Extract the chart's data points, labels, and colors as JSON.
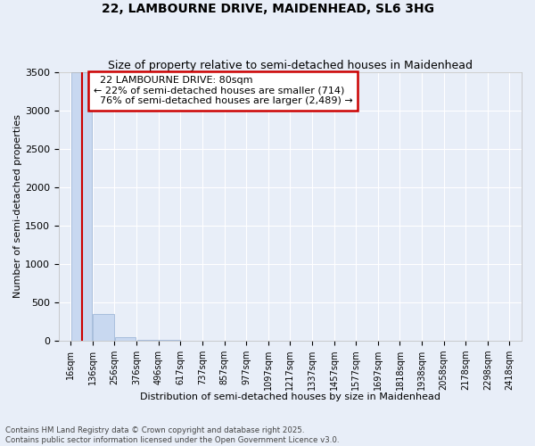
{
  "title": "22, LAMBOURNE DRIVE, MAIDENHEAD, SL6 3HG",
  "subtitle": "Size of property relative to semi-detached houses in Maidenhead",
  "xlabel": "Distribution of semi-detached houses by size in Maidenhead",
  "ylabel": "Number of semi-detached properties",
  "bin_edges": [
    16,
    136,
    256,
    376,
    496,
    617,
    737,
    857,
    977,
    1097,
    1217,
    1337,
    1457,
    1577,
    1697,
    1818,
    1938,
    2058,
    2178,
    2298,
    2418
  ],
  "bar_heights": [
    3500,
    350,
    45,
    10,
    5,
    2,
    1,
    1,
    0,
    0,
    0,
    0,
    0,
    0,
    0,
    0,
    0,
    0,
    0,
    0
  ],
  "bar_color": "#c8d8f0",
  "bar_edge_color": "#a0b8d8",
  "property_size": 80,
  "property_label": "22 LAMBOURNE DRIVE: 80sqm",
  "pct_smaller": 22,
  "n_smaller": 714,
  "pct_larger": 76,
  "n_larger": 2489,
  "vline_color": "#cc0000",
  "annotation_box_color": "#cc0000",
  "ylim": [
    0,
    3500
  ],
  "background_color": "#e8eef8",
  "grid_color": "#ffffff",
  "title_fontsize": 10,
  "subtitle_fontsize": 9,
  "axis_label_fontsize": 8,
  "tick_fontsize": 7,
  "annotation_fontsize": 8,
  "footer": "Contains HM Land Registry data © Crown copyright and database right 2025.\nContains public sector information licensed under the Open Government Licence v3.0."
}
